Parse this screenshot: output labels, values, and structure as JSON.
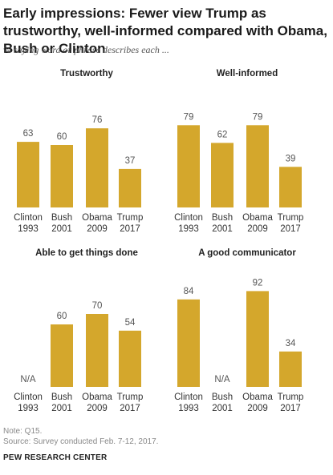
{
  "title": "Early impressions: Fewer view Trump as trustworthy, well-informed compared with Obama, Bush or Clinton",
  "subtitle": "% saying word or phrase describes each ...",
  "note": "Note: Q15.",
  "source": "Source: Survey conducted Feb. 7-12, 2017.",
  "brand": "PEW RESEARCH CENTER",
  "na_label": "N/A",
  "bar_color": "#d4a72c",
  "chart_data": [
    {
      "type": "bar",
      "title": "Trustworthy",
      "categories": [
        [
          "Clinton",
          "1993"
        ],
        [
          "Bush",
          "2001"
        ],
        [
          "Obama",
          "2009"
        ],
        [
          "Trump",
          "2017"
        ]
      ],
      "values": [
        63,
        60,
        76,
        37
      ],
      "ylim": [
        0,
        100
      ]
    },
    {
      "type": "bar",
      "title": "Well-informed",
      "categories": [
        [
          "Clinton",
          "1993"
        ],
        [
          "Bush",
          "2001"
        ],
        [
          "Obama",
          "2009"
        ],
        [
          "Trump",
          "2017"
        ]
      ],
      "values": [
        79,
        62,
        79,
        39
      ],
      "ylim": [
        0,
        100
      ]
    },
    {
      "type": "bar",
      "title": "Able to get things done",
      "categories": [
        [
          "Clinton",
          "1993"
        ],
        [
          "Bush",
          "2001"
        ],
        [
          "Obama",
          "2009"
        ],
        [
          "Trump",
          "2017"
        ]
      ],
      "values": [
        null,
        60,
        70,
        54
      ],
      "ylim": [
        0,
        100
      ]
    },
    {
      "type": "bar",
      "title": "A good communicator",
      "categories": [
        [
          "Clinton",
          "1993"
        ],
        [
          "Bush",
          "2001"
        ],
        [
          "Obama",
          "2009"
        ],
        [
          "Trump",
          "2017"
        ]
      ],
      "values": [
        84,
        null,
        92,
        34
      ],
      "ylim": [
        0,
        100
      ]
    }
  ]
}
